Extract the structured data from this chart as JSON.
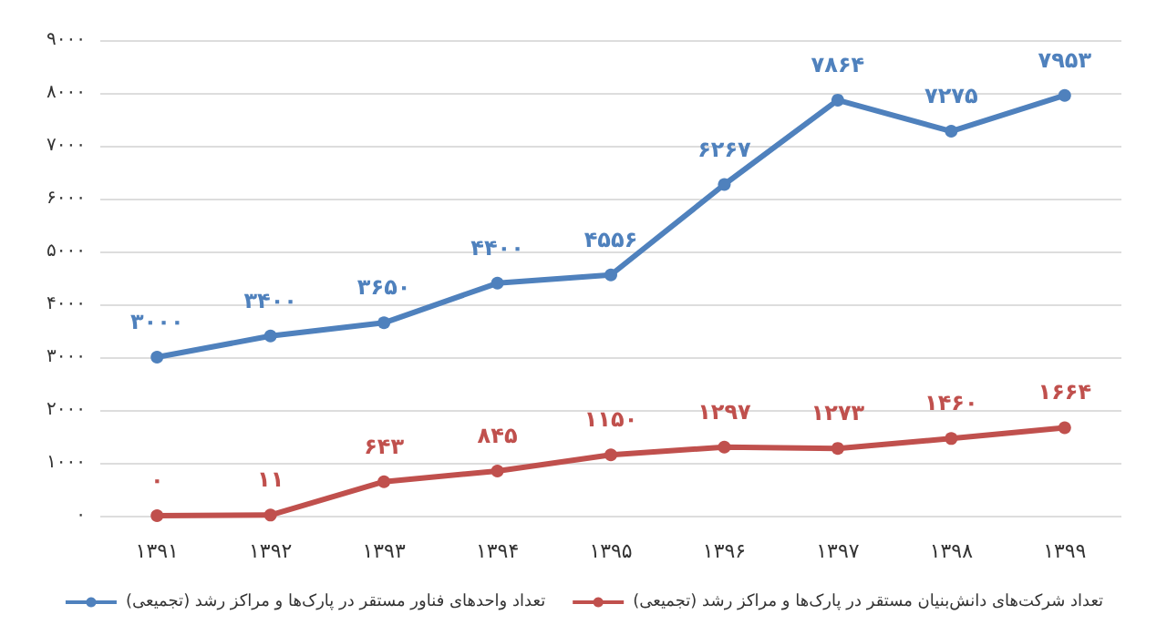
{
  "chart_data": {
    "type": "line",
    "categories": [
      "۱۳۹۱",
      "۱۳۹۲",
      "۱۳۹۳",
      "۱۳۹۴",
      "۱۳۹۵",
      "۱۳۹۶",
      "۱۳۹۷",
      "۱۳۹۸",
      "۱۳۹۹"
    ],
    "series": [
      {
        "name": "تعداد واحدهای فناور مستقر در پارک‌ها و مراکز رشد (تجمیعی)",
        "color": "#4f81bd",
        "values": [
          3000,
          3400,
          3650,
          4400,
          4556,
          6267,
          7864,
          7275,
          7953
        ],
        "value_labels": [
          "۳۰۰۰",
          "۳۴۰۰",
          "۳۶۵۰",
          "۴۴۰۰",
          "۴۵۵۶",
          "۶۲۶۷",
          "۷۸۶۴",
          "۷۲۷۵",
          "۷۹۵۳"
        ]
      },
      {
        "name": "تعداد شرکت‌های دانش‌بنیان مستقر در پارک‌ها و مراکز رشد (تجمیعی)",
        "color": "#c0504d",
        "values": [
          0,
          11,
          643,
          845,
          1150,
          1297,
          1273,
          1460,
          1664
        ],
        "value_labels": [
          "۰",
          "۱۱",
          "۶۴۳",
          "۸۴۵",
          "۱۱۵۰",
          "۱۲۹۷",
          "۱۲۷۳",
          "۱۴۶۰",
          "۱۶۶۴"
        ]
      }
    ],
    "ylim": [
      0,
      9000
    ],
    "yticks": [
      {
        "value": 0,
        "label": "۰"
      },
      {
        "value": 1000,
        "label": "۱۰۰۰"
      },
      {
        "value": 2000,
        "label": "۲۰۰۰"
      },
      {
        "value": 3000,
        "label": "۳۰۰۰"
      },
      {
        "value": 4000,
        "label": "۴۰۰۰"
      },
      {
        "value": 5000,
        "label": "۵۰۰۰"
      },
      {
        "value": 6000,
        "label": "۶۰۰۰"
      },
      {
        "value": 7000,
        "label": "۷۰۰۰"
      },
      {
        "value": 8000,
        "label": "۸۰۰۰"
      },
      {
        "value": 9000,
        "label": "۹۰۰۰"
      }
    ],
    "grid": "y",
    "legend": "bottom",
    "marker": "circle",
    "line_style": "solid"
  }
}
